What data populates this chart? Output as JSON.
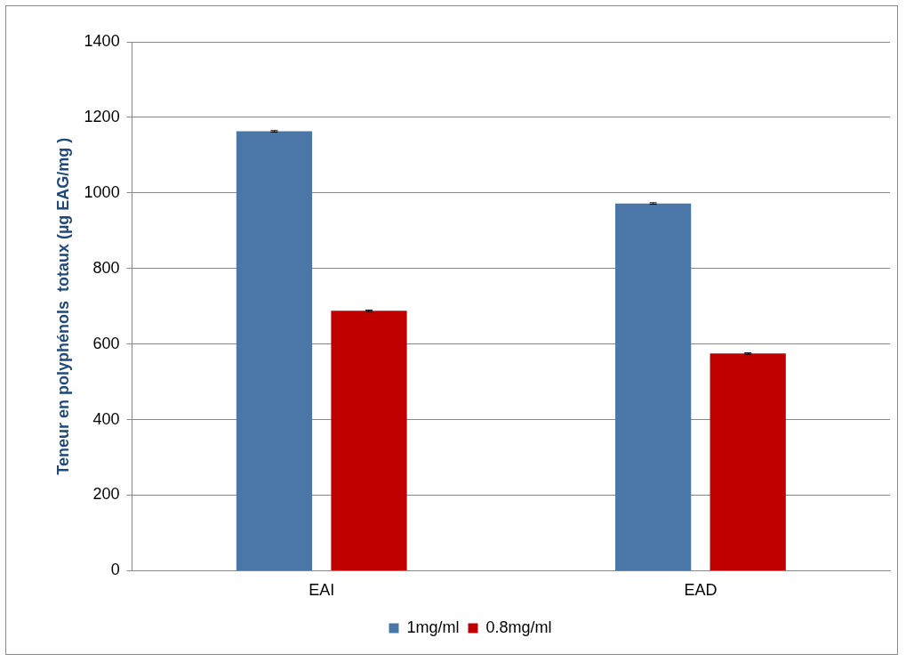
{
  "chart_data": {
    "type": "bar",
    "ylabel": "Teneur en polyphénols  totaux (µg EAG/mg )",
    "categories": [
      "EAI",
      "EAD"
    ],
    "series": [
      {
        "name": "1mg/ml",
        "color": "#4a76a8",
        "values": [
          1163,
          972
        ],
        "errors": [
          2,
          2
        ]
      },
      {
        "name": "0.8mg/ml",
        "color": "#c00000",
        "values": [
          688,
          575
        ],
        "errors": [
          2,
          2
        ]
      }
    ],
    "ylim": [
      0,
      1400
    ],
    "yticks": [
      0,
      200,
      400,
      600,
      800,
      1000,
      1200,
      1400
    ],
    "grid": "y",
    "legend": "bottom"
  }
}
